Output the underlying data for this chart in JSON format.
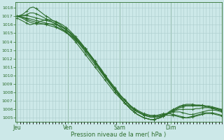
{
  "xlabel": "Pression niveau de la mer( hPa )",
  "bg_color": "#cce8e8",
  "line_color": "#2d6e2d",
  "grid_color": "#aacccc",
  "tick_color": "#2d6e2d",
  "text_color": "#2d6e2d",
  "ylim": [
    1004.5,
    1018.7
  ],
  "yticks": [
    1005,
    1006,
    1007,
    1008,
    1009,
    1010,
    1011,
    1012,
    1013,
    1014,
    1015,
    1016,
    1017,
    1018
  ],
  "day_labels": [
    "Jeu",
    "Ven",
    "Sam",
    "Dim"
  ],
  "day_positions": [
    0,
    32,
    64,
    96
  ],
  "xlim": [
    -1,
    128
  ],
  "lines": [
    [
      1017.0,
      1017.1,
      1017.3,
      1017.6,
      1018.0,
      1018.1,
      1017.9,
      1017.6,
      1017.3,
      1017.0,
      1016.8,
      1016.5,
      1016.3,
      1016.1,
      1015.8,
      1015.5,
      1015.1,
      1014.7,
      1014.3,
      1013.8,
      1013.3,
      1012.8,
      1012.3,
      1011.8,
      1011.3,
      1010.8,
      1010.3,
      1009.8,
      1009.3,
      1008.8,
      1008.3,
      1007.9,
      1007.5,
      1007.1,
      1006.7,
      1006.4,
      1006.1,
      1005.9,
      1005.7,
      1005.5,
      1005.4,
      1005.3,
      1005.3,
      1005.3,
      1005.4,
      1005.5,
      1005.5,
      1005.5,
      1005.4,
      1005.3,
      1005.2,
      1005.1,
      1005.0,
      1005.0,
      1005.1,
      1005.2,
      1005.3,
      1005.4,
      1005.5,
      1005.5,
      1005.5,
      1005.4,
      1005.3,
      1005.2
    ],
    [
      1017.0,
      1017.0,
      1017.1,
      1017.2,
      1017.4,
      1017.4,
      1017.3,
      1017.1,
      1016.9,
      1016.7,
      1016.5,
      1016.3,
      1016.1,
      1015.8,
      1015.5,
      1015.2,
      1014.8,
      1014.4,
      1014.0,
      1013.5,
      1013.0,
      1012.5,
      1012.0,
      1011.5,
      1011.0,
      1010.5,
      1010.0,
      1009.5,
      1009.0,
      1008.5,
      1008.0,
      1007.6,
      1007.2,
      1006.8,
      1006.5,
      1006.2,
      1005.9,
      1005.7,
      1005.5,
      1005.3,
      1005.2,
      1005.1,
      1005.1,
      1005.1,
      1005.2,
      1005.3,
      1005.3,
      1005.3,
      1005.3,
      1005.2,
      1005.1,
      1005.0,
      1005.0,
      1005.1,
      1005.2,
      1005.3,
      1005.4,
      1005.5,
      1005.6,
      1005.6,
      1005.6,
      1005.5,
      1005.4,
      1005.3
    ],
    [
      1016.8,
      1016.6,
      1016.4,
      1016.2,
      1016.0,
      1016.1,
      1016.2,
      1016.4,
      1016.5,
      1016.6,
      1016.6,
      1016.5,
      1016.4,
      1016.2,
      1016.0,
      1015.7,
      1015.4,
      1015.0,
      1014.6,
      1014.2,
      1013.7,
      1013.2,
      1012.7,
      1012.2,
      1011.7,
      1011.2,
      1010.7,
      1010.1,
      1009.6,
      1009.1,
      1008.6,
      1008.1,
      1007.6,
      1007.2,
      1006.8,
      1006.4,
      1006.1,
      1005.8,
      1005.6,
      1005.4,
      1005.3,
      1005.2,
      1005.2,
      1005.2,
      1005.3,
      1005.4,
      1005.5,
      1005.6,
      1005.7,
      1005.7,
      1005.7,
      1005.6,
      1005.5,
      1005.4,
      1005.4,
      1005.5,
      1005.6,
      1005.7,
      1005.8,
      1005.9,
      1005.9,
      1005.9,
      1005.8,
      1005.7
    ],
    [
      1017.0,
      1016.9,
      1016.7,
      1016.5,
      1016.3,
      1016.2,
      1016.1,
      1016.1,
      1016.1,
      1016.1,
      1016.1,
      1016.1,
      1016.0,
      1015.9,
      1015.7,
      1015.5,
      1015.2,
      1014.9,
      1014.5,
      1014.1,
      1013.7,
      1013.2,
      1012.7,
      1012.2,
      1011.7,
      1011.1,
      1010.6,
      1010.0,
      1009.5,
      1009.0,
      1008.5,
      1008.0,
      1007.5,
      1007.1,
      1006.7,
      1006.3,
      1006.0,
      1005.7,
      1005.5,
      1005.3,
      1005.2,
      1005.1,
      1005.1,
      1005.1,
      1005.2,
      1005.3,
      1005.5,
      1005.6,
      1005.8,
      1005.9,
      1006.0,
      1006.0,
      1006.0,
      1006.0,
      1006.0,
      1006.1,
      1006.1,
      1006.2,
      1006.2,
      1006.2,
      1006.2,
      1006.1,
      1006.0,
      1005.9
    ],
    [
      1017.0,
      1016.9,
      1016.8,
      1016.7,
      1016.5,
      1016.4,
      1016.3,
      1016.2,
      1016.1,
      1016.0,
      1015.9,
      1015.8,
      1015.7,
      1015.5,
      1015.3,
      1015.1,
      1014.8,
      1014.5,
      1014.2,
      1013.8,
      1013.4,
      1013.0,
      1012.5,
      1012.0,
      1011.5,
      1011.0,
      1010.4,
      1009.9,
      1009.3,
      1008.8,
      1008.3,
      1007.8,
      1007.3,
      1006.8,
      1006.4,
      1006.0,
      1005.7,
      1005.4,
      1005.2,
      1005.0,
      1004.9,
      1004.8,
      1004.8,
      1004.9,
      1005.0,
      1005.2,
      1005.4,
      1005.6,
      1005.8,
      1006.0,
      1006.2,
      1006.3,
      1006.4,
      1006.4,
      1006.4,
      1006.4,
      1006.4,
      1006.4,
      1006.4,
      1006.4,
      1006.3,
      1006.2,
      1006.1,
      1006.0
    ],
    [
      1017.0,
      1017.0,
      1016.9,
      1016.8,
      1016.7,
      1016.6,
      1016.5,
      1016.4,
      1016.3,
      1016.2,
      1016.1,
      1016.0,
      1015.8,
      1015.6,
      1015.4,
      1015.2,
      1014.9,
      1014.6,
      1014.3,
      1013.9,
      1013.5,
      1013.1,
      1012.6,
      1012.1,
      1011.6,
      1011.1,
      1010.5,
      1010.0,
      1009.4,
      1008.9,
      1008.3,
      1007.8,
      1007.3,
      1006.8,
      1006.4,
      1006.0,
      1005.7,
      1005.4,
      1005.2,
      1005.0,
      1004.9,
      1004.8,
      1004.8,
      1004.9,
      1005.0,
      1005.2,
      1005.4,
      1005.7,
      1005.9,
      1006.1,
      1006.3,
      1006.4,
      1006.5,
      1006.5,
      1006.5,
      1006.5,
      1006.5,
      1006.5,
      1006.4,
      1006.3,
      1006.2,
      1006.1,
      1006.0,
      1005.9
    ],
    [
      1017.0,
      1017.1,
      1017.1,
      1017.1,
      1017.0,
      1016.9,
      1016.8,
      1016.7,
      1016.6,
      1016.5,
      1016.4,
      1016.3,
      1016.1,
      1015.9,
      1015.7,
      1015.4,
      1015.1,
      1014.8,
      1014.4,
      1014.0,
      1013.6,
      1013.1,
      1012.6,
      1012.1,
      1011.6,
      1011.0,
      1010.5,
      1009.9,
      1009.4,
      1008.8,
      1008.3,
      1007.8,
      1007.3,
      1006.8,
      1006.4,
      1006.0,
      1005.7,
      1005.4,
      1005.2,
      1005.0,
      1004.9,
      1004.8,
      1004.8,
      1004.9,
      1005.1,
      1005.3,
      1005.5,
      1005.8,
      1006.0,
      1006.2,
      1006.4,
      1006.5,
      1006.6,
      1006.6,
      1006.6,
      1006.5,
      1006.5,
      1006.4,
      1006.3,
      1006.2,
      1006.1,
      1006.0,
      1005.9,
      1005.8
    ]
  ]
}
